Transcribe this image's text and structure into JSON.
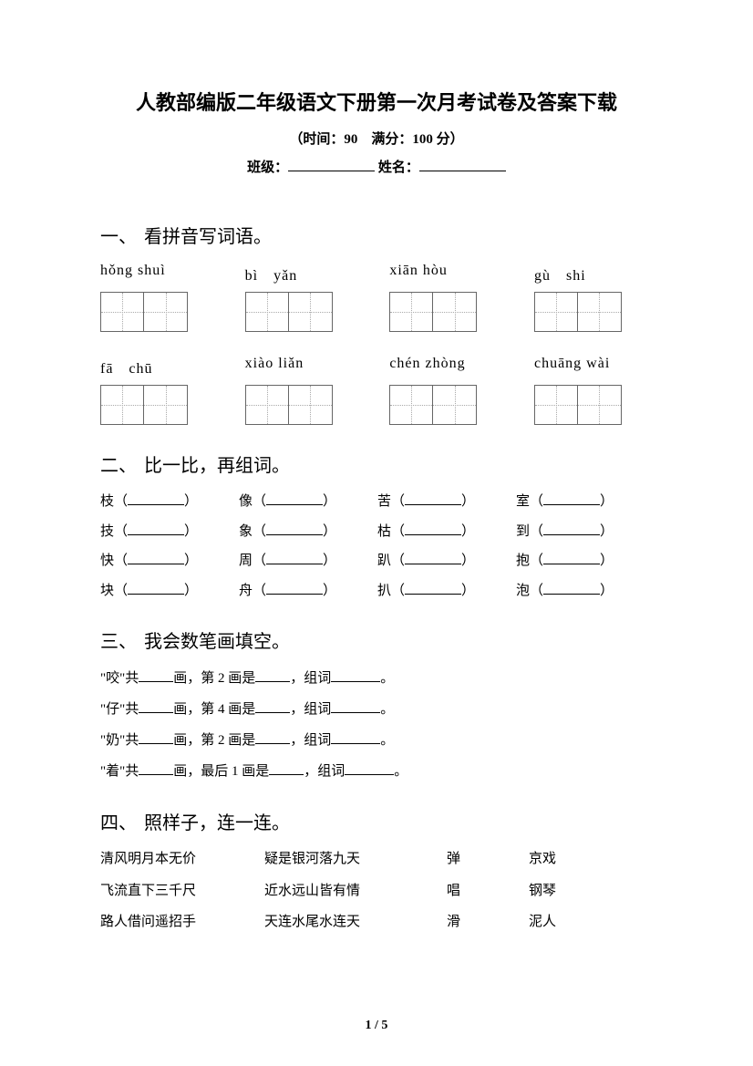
{
  "header": {
    "title": "人教部编版二年级语文下册第一次月考试卷及答案下载",
    "subtitle": "（时间：90　满分：100 分）",
    "class_label": "班级：",
    "name_label": "姓名："
  },
  "section1": {
    "num": "一、",
    "title": "看拼音写词语。",
    "row1": [
      "hǒng shuì",
      "bì　yǎn",
      "xiān hòu",
      "gù　shi"
    ],
    "row2": [
      "fā　chū",
      "xiào liǎn",
      "chén zhòng",
      "chuāng wài"
    ]
  },
  "section2": {
    "num": "二、",
    "title": "比一比，再组词。",
    "rows": [
      [
        "枝（",
        "像（",
        "苦（",
        "室（"
      ],
      [
        "技（",
        "象（",
        "枯（",
        "到（"
      ],
      [
        "快（",
        "周（",
        "趴（",
        "抱（"
      ],
      [
        "块（",
        "舟（",
        "扒（",
        "泡（"
      ]
    ],
    "close": "）"
  },
  "section3": {
    "num": "三、",
    "title": "我会数笔画填空。",
    "lines": [
      {
        "char": "\"咬\"共",
        "mid1": "画，第 2 画是",
        "mid2": "，组词",
        "end": "。"
      },
      {
        "char": "\"仔\"共",
        "mid1": "画，第 4 画是",
        "mid2": "，组词",
        "end": "。"
      },
      {
        "char": "\"奶\"共",
        "mid1": "画，第 2 画是",
        "mid2": "，组词",
        "end": "。"
      },
      {
        "char": "\"着\"共",
        "mid1": "画，最后 1 画是",
        "mid2": "，组词",
        "end": "。"
      }
    ]
  },
  "section4": {
    "num": "四、",
    "title": "照样子，连一连。",
    "rows": [
      [
        "清风明月本无价",
        "疑是银河落九天",
        "弹",
        "京戏"
      ],
      [
        "飞流直下三千尺",
        "近水远山皆有情",
        "唱",
        "钢琴"
      ],
      [
        "路人借问遥招手",
        "天连水尾水连天",
        "滑",
        "泥人"
      ]
    ]
  },
  "footer": {
    "page": "1 / 5"
  }
}
